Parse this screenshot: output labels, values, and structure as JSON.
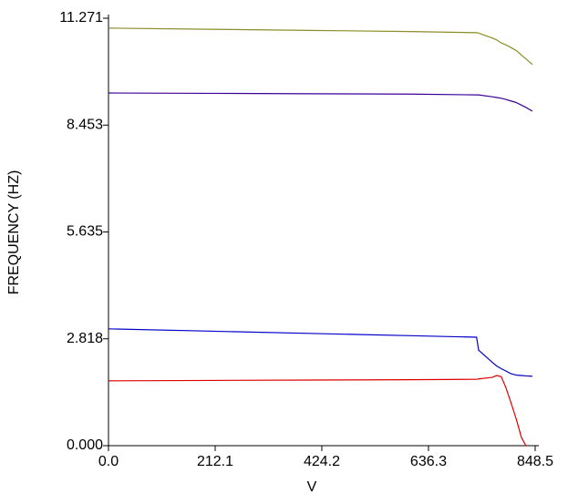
{
  "chart_data": {
    "type": "line",
    "x_label": "V",
    "y_label": "FREQUENCY (HZ)",
    "x": [
      0,
      200,
      400,
      600,
      732,
      736,
      763,
      772,
      781,
      790,
      800,
      808,
      812,
      821,
      830,
      843
    ],
    "series": [
      {
        "color": "#8c8c28",
        "values": [
          11.01,
          10.98,
          10.95,
          10.92,
          10.89,
          10.88,
          10.75,
          10.7,
          10.62,
          10.57,
          10.5,
          10.44,
          10.41,
          10.3,
          10.2,
          10.05
        ]
      },
      {
        "color": "#3c0096",
        "values": [
          9.3,
          9.29,
          9.28,
          9.27,
          9.25,
          9.25,
          9.2,
          9.18,
          9.16,
          9.13,
          9.09,
          9.06,
          9.04,
          8.98,
          8.92,
          8.82
        ]
      },
      {
        "color": "#0000c8",
        "values": [
          3.08,
          3.02,
          2.96,
          2.9,
          2.86,
          2.52,
          2.2,
          2.1,
          2.03,
          1.97,
          1.9,
          1.87,
          1.86,
          1.85,
          1.84,
          1.83
        ]
      },
      {
        "color": "#dc0000",
        "values": [
          1.71,
          1.72,
          1.73,
          1.74,
          1.75,
          1.76,
          1.8,
          1.85,
          1.82,
          1.54,
          1.15,
          0.82,
          0.65,
          0.22,
          0.0,
          null
        ]
      }
    ],
    "xlim": [
      0,
      848.5
    ],
    "xticks": [
      {
        "value": 0,
        "label": "0.0"
      },
      212.1,
      424.2,
      636.3,
      848.5
    ],
    "ylim": [
      0,
      11.271
    ],
    "yticks": [
      {
        "value": 0,
        "label": "0.000"
      },
      2.818,
      5.635,
      8.453,
      11.271
    ],
    "grid": false
  }
}
